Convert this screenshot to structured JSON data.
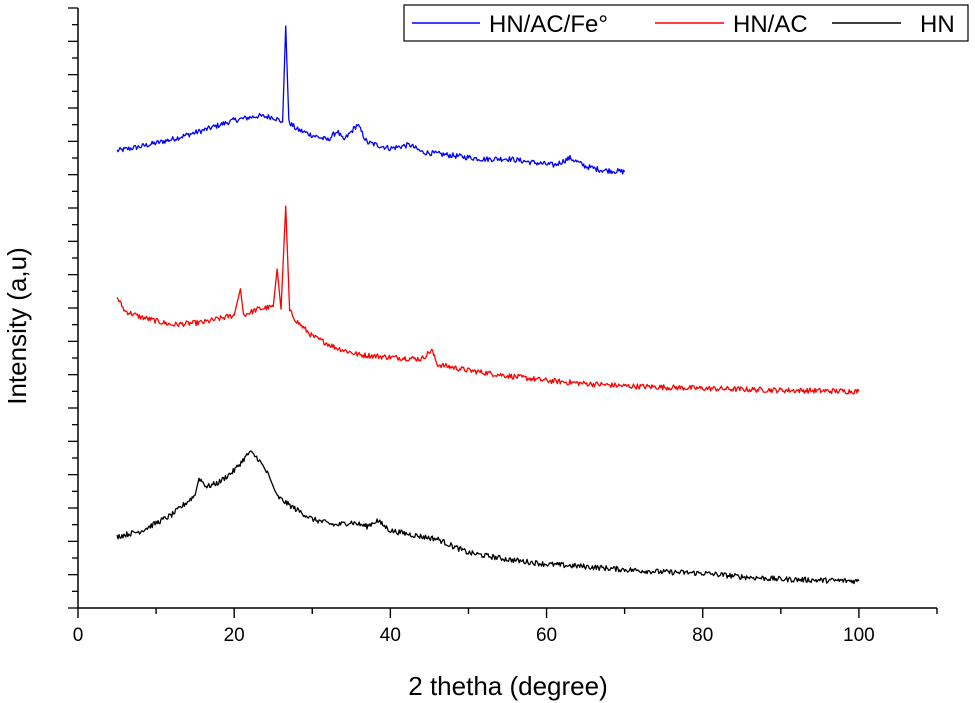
{
  "chart_data": {
    "type": "line",
    "title": "",
    "xlabel": "2 thetha (degree)",
    "ylabel": "Intensity (a,u)",
    "xlim": [
      0,
      110
    ],
    "ylim": [
      0,
      100
    ],
    "x_ticks": [
      "0",
      "20",
      "40",
      "60",
      "80",
      "100"
    ],
    "y_tick_labels": "none",
    "grid": false,
    "legend": "top-right",
    "series": [
      {
        "name": "HN/AC/Fe°",
        "color": "#0000ff",
        "points": [
          [
            5,
            76.2
          ],
          [
            8,
            76.9
          ],
          [
            12,
            78.1
          ],
          [
            16,
            79.6
          ],
          [
            20,
            81.3
          ],
          [
            23,
            82.0
          ],
          [
            25,
            81.8
          ],
          [
            26.2,
            81.0
          ],
          [
            26.6,
            97.0
          ],
          [
            27.0,
            81.0
          ],
          [
            28,
            79.8
          ],
          [
            30,
            78.8
          ],
          [
            32,
            78.0
          ],
          [
            33.2,
            79.5
          ],
          [
            34,
            77.9
          ],
          [
            35.8,
            80.6
          ],
          [
            37,
            77.6
          ],
          [
            40,
            76.6
          ],
          [
            42.5,
            77.2
          ],
          [
            44,
            76.0
          ],
          [
            48,
            75.4
          ],
          [
            52,
            74.8
          ],
          [
            55,
            74.9
          ],
          [
            58,
            74.3
          ],
          [
            61,
            73.8
          ],
          [
            63,
            75.0
          ],
          [
            65,
            73.6
          ],
          [
            67,
            73.0
          ],
          [
            70,
            72.7
          ]
        ]
      },
      {
        "name": "HN/AC",
        "color": "#ff0000",
        "points": [
          [
            5,
            51.8
          ],
          [
            6,
            49.5
          ],
          [
            8,
            48.5
          ],
          [
            12,
            47.2
          ],
          [
            16,
            47.6
          ],
          [
            20,
            48.8
          ],
          [
            20.8,
            53.2
          ],
          [
            21.2,
            48.8
          ],
          [
            23,
            49.8
          ],
          [
            25,
            50.2
          ],
          [
            25.5,
            56.5
          ],
          [
            26,
            49.8
          ],
          [
            26.6,
            67.0
          ],
          [
            27.1,
            49.5
          ],
          [
            28,
            47.8
          ],
          [
            30,
            45.3
          ],
          [
            33,
            43.4
          ],
          [
            36,
            42.2
          ],
          [
            40,
            41.8
          ],
          [
            44,
            41.5
          ],
          [
            45.3,
            43.0
          ],
          [
            46,
            40.6
          ],
          [
            50,
            39.6
          ],
          [
            55,
            38.7
          ],
          [
            60,
            37.9
          ],
          [
            65,
            37.4
          ],
          [
            70,
            37.0
          ],
          [
            80,
            36.6
          ],
          [
            90,
            36.3
          ],
          [
            100,
            36.1
          ]
        ]
      },
      {
        "name": "HN",
        "color": "#000000",
        "points": [
          [
            5,
            11.9
          ],
          [
            8,
            12.8
          ],
          [
            12,
            15.5
          ],
          [
            15,
            18.8
          ],
          [
            15.5,
            21.7
          ],
          [
            16.5,
            20.2
          ],
          [
            18,
            20.9
          ],
          [
            20,
            22.9
          ],
          [
            22,
            26.0
          ],
          [
            23,
            25.0
          ],
          [
            24,
            23.0
          ],
          [
            24.5,
            21.9
          ],
          [
            25.5,
            18.6
          ],
          [
            27,
            17.2
          ],
          [
            30,
            14.8
          ],
          [
            33,
            13.8
          ],
          [
            35,
            14.3
          ],
          [
            37,
            13.6
          ],
          [
            38.3,
            14.6
          ],
          [
            40,
            12.9
          ],
          [
            44,
            11.9
          ],
          [
            46,
            11.5
          ],
          [
            48,
            10.3
          ],
          [
            50,
            9.2
          ],
          [
            55,
            8.1
          ],
          [
            60,
            7.3
          ],
          [
            65,
            6.9
          ],
          [
            70,
            6.4
          ],
          [
            75,
            6.0
          ],
          [
            80,
            5.8
          ],
          [
            85,
            5.2
          ],
          [
            90,
            4.8
          ],
          [
            96,
            4.6
          ],
          [
            100,
            4.5
          ]
        ]
      }
    ]
  }
}
